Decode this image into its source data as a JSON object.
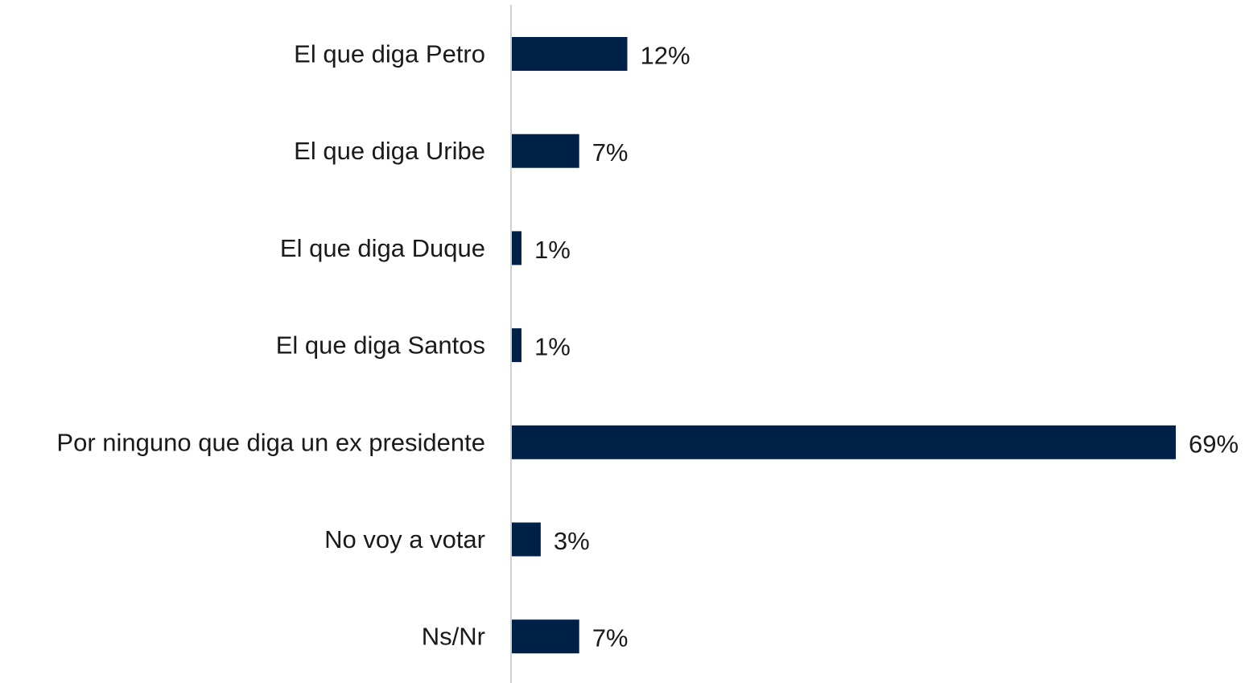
{
  "chart_data": {
    "type": "bar",
    "orientation": "horizontal",
    "categories": [
      "El que diga Petro",
      "El que diga Uribe",
      "El que diga Duque",
      "El que diga Santos",
      "Por ninguno que diga un ex presidente",
      "No voy a votar",
      "Ns/Nr"
    ],
    "values": [
      12,
      7,
      1,
      1,
      69,
      3,
      7
    ],
    "value_labels": [
      "12%",
      "7%",
      "1%",
      "1%",
      "69%",
      "3%",
      "7%"
    ],
    "unit": "%",
    "bar_color": "#002147",
    "axis_color": "#d0d0d0",
    "grid": false,
    "legend": "none"
  }
}
